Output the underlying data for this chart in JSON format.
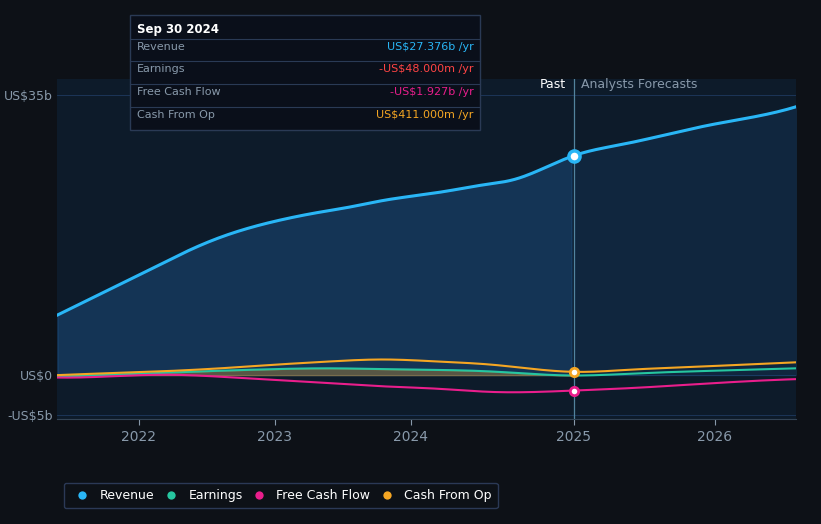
{
  "bg_color": "#0d1117",
  "plot_bg_color": "#0d1b2a",
  "ylabel_35b": "US$35b",
  "ylabel_0": "US$0",
  "ylabel_neg5b": "-US$5b",
  "past_label": "Past",
  "forecast_label": "Analysts Forecasts",
  "tooltip": {
    "date": "Sep 30 2024",
    "revenue_label": "Revenue",
    "revenue_value": "US$27.376b",
    "earnings_label": "Earnings",
    "earnings_value": "-US$48.000m",
    "fcf_label": "Free Cash Flow",
    "fcf_value": "-US$1.927b",
    "cashop_label": "Cash From Op",
    "cashop_value": "US$411.000m"
  },
  "revenue_color": "#29b6f6",
  "earnings_color": "#26c6a0",
  "fcf_color": "#e91e8c",
  "cashop_color": "#f5a623",
  "earnings_neg_color": "#ff4444",
  "fcf_neg_color": "#e91e8c",
  "divider_color": "#5a8faa",
  "grid_color": "#1e3a5f",
  "axis_label_color": "#8899aa",
  "revenue": {
    "x": [
      0.0,
      0.3,
      0.6,
      0.9,
      1.2,
      1.5,
      1.8,
      2.1,
      2.4,
      2.7,
      3.0,
      3.3,
      3.6,
      3.9,
      4.2,
      4.75,
      5.2,
      5.6,
      6.0,
      6.4,
      6.8
    ],
    "y": [
      7.5,
      9.5,
      11.5,
      13.5,
      15.5,
      17.2,
      18.5,
      19.5,
      20.3,
      21.0,
      21.8,
      22.4,
      23.0,
      23.7,
      24.4,
      27.376,
      28.8,
      30.0,
      31.2,
      32.2,
      33.5
    ]
  },
  "earnings": {
    "x": [
      0.0,
      0.5,
      1.0,
      1.5,
      2.0,
      2.5,
      3.0,
      3.5,
      4.0,
      4.75,
      5.3,
      5.8,
      6.3,
      6.8
    ],
    "y": [
      -0.2,
      0.05,
      0.3,
      0.55,
      0.75,
      0.85,
      0.75,
      0.65,
      0.45,
      -0.048,
      0.2,
      0.45,
      0.65,
      0.85
    ]
  },
  "fcf": {
    "x": [
      0.0,
      0.5,
      1.0,
      1.5,
      2.0,
      2.5,
      3.0,
      3.5,
      4.0,
      4.75,
      5.3,
      5.8,
      6.3,
      6.8
    ],
    "y": [
      -0.3,
      -0.15,
      0.05,
      -0.2,
      -0.6,
      -1.0,
      -1.4,
      -1.7,
      -2.1,
      -1.927,
      -1.6,
      -1.2,
      -0.8,
      -0.5
    ]
  },
  "cashop": {
    "x": [
      0.0,
      0.5,
      1.0,
      1.5,
      2.0,
      2.5,
      3.0,
      3.5,
      4.0,
      4.75,
      5.3,
      5.8,
      6.3,
      6.8
    ],
    "y": [
      0.0,
      0.25,
      0.5,
      0.85,
      1.3,
      1.7,
      1.95,
      1.7,
      1.3,
      0.411,
      0.7,
      1.0,
      1.3,
      1.6
    ]
  },
  "divider_x": 4.75,
  "xlim": [
    0.0,
    6.8
  ],
  "ylim": [
    -5.5,
    37.0
  ],
  "xtick_positions": [
    0.75,
    1.85,
    2.95,
    4.05,
    5.15,
    6.25
  ],
  "xtick_labels": [
    "2022",
    "",
    "2023",
    "",
    "2024",
    ""
  ],
  "xtick_positions2": [
    0.75,
    1.85,
    2.95,
    4.75,
    6.0
  ],
  "xtick_labels2": [
    "2022",
    "2023",
    "2024",
    "2025",
    "2026"
  ]
}
